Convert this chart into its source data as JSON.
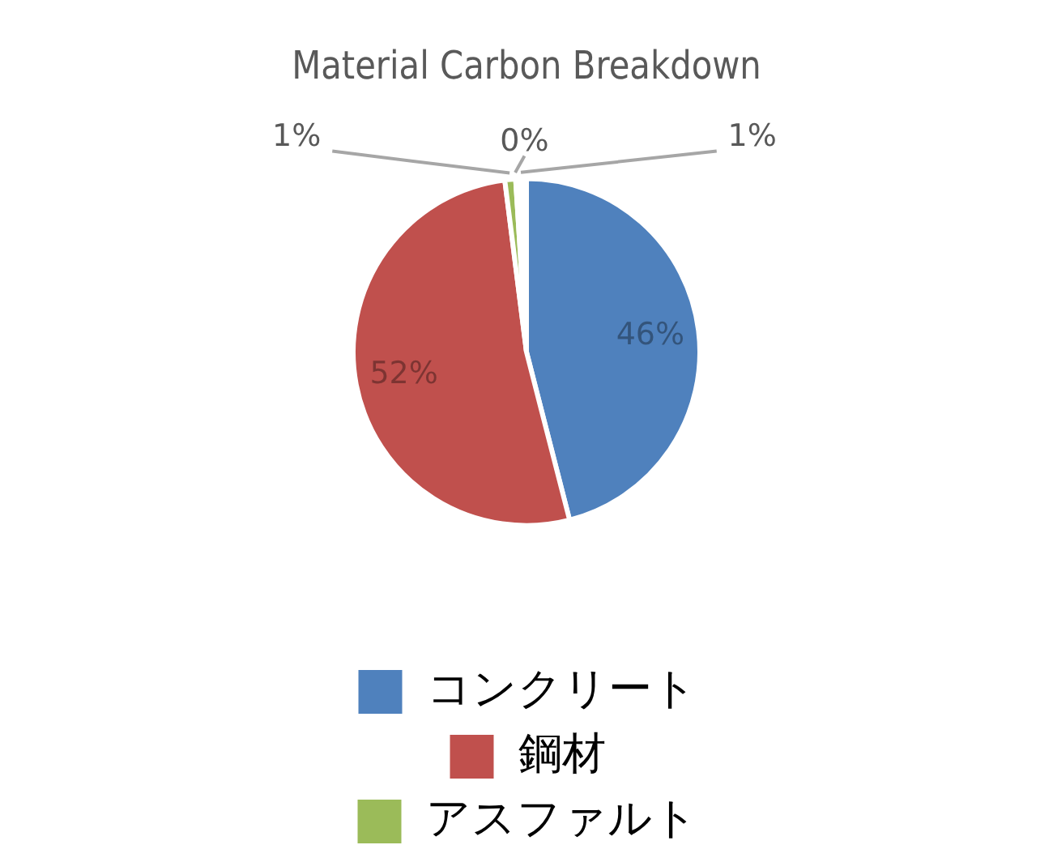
{
  "chart_data": {
    "type": "pie",
    "title": "Material Carbon Breakdown",
    "categories": [
      "コンクリート",
      "鋼材",
      "アスファルト",
      null,
      null
    ],
    "values": [
      46,
      52,
      1,
      0,
      1
    ],
    "colors": [
      "#4f81bd",
      "#c0504d",
      "#9bbb59",
      "#ffffff",
      "#ffffff"
    ],
    "value_labels": [
      "46%",
      "52%",
      "1%",
      "0%",
      "1%"
    ],
    "legend": "bottom"
  }
}
